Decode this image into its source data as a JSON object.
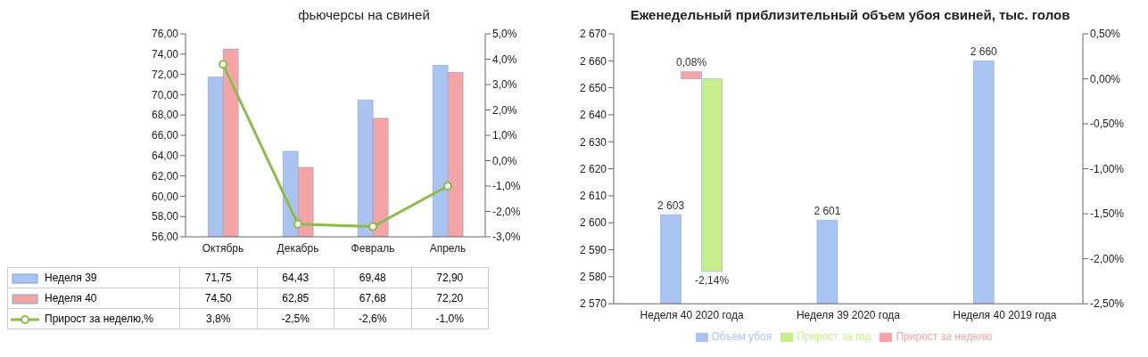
{
  "chart_data": [
    {
      "type": "bar",
      "title": "фьючерсы на свиней",
      "categories": [
        "Октябрь",
        "Декабрь",
        "Февраль",
        "Апрель"
      ],
      "series": [
        {
          "name": "Неделя 39",
          "color": "#a9c4f0",
          "values": [
            71.75,
            64.43,
            69.48,
            72.9
          ],
          "value_labels": [
            "71,75",
            "64,43",
            "69,48",
            "72,90"
          ]
        },
        {
          "name": "Неделя 40",
          "color": "#f4a4a4",
          "values": [
            74.5,
            62.85,
            67.68,
            72.2
          ],
          "value_labels": [
            "74,50",
            "62,85",
            "67,68",
            "72,20"
          ]
        },
        {
          "name": "Прирост за неделю,%",
          "type": "line",
          "axis": "y2",
          "color": "#8dbb4c",
          "values": [
            3.8,
            -2.5,
            -2.6,
            -1.0
          ],
          "value_labels": [
            "3,8%",
            "-2,5%",
            "-2,6%",
            "-1,0%"
          ]
        }
      ],
      "ylim": [
        56,
        76
      ],
      "yticks": [
        {
          "value": 56,
          "label": "56,00"
        },
        {
          "value": 58,
          "label": "58,00"
        },
        {
          "value": 60,
          "label": "60,00"
        },
        {
          "value": 62,
          "label": "62,00"
        },
        {
          "value": 64,
          "label": "64,00"
        },
        {
          "value": 66,
          "label": "66,00"
        },
        {
          "value": 68,
          "label": "68,00"
        },
        {
          "value": 70,
          "label": "70,00"
        },
        {
          "value": 72,
          "label": "72,00"
        },
        {
          "value": 74,
          "label": "74,00"
        },
        {
          "value": 76,
          "label": "76,00"
        }
      ],
      "y2lim": [
        -3,
        5
      ],
      "y2ticks": [
        {
          "value": -3,
          "label": "-3,0%"
        },
        {
          "value": -2,
          "label": "-2,0%"
        },
        {
          "value": -1,
          "label": "-1,0%"
        },
        {
          "value": 0,
          "label": "0,0%"
        },
        {
          "value": 1,
          "label": "1,0%"
        },
        {
          "value": 2,
          "label": "2,0%"
        },
        {
          "value": 3,
          "label": "3,0%"
        },
        {
          "value": 4,
          "label": "4,0%"
        },
        {
          "value": 5,
          "label": "5,0%"
        }
      ],
      "grid": false,
      "legend": "bottom",
      "marker": "circle"
    },
    {
      "type": "bar",
      "title": "Еженедельный приблизительный объем убоя свиней, тыс. голов",
      "categories": [
        "Неделя 40 2020 года",
        "Неделя 39 2020 года",
        "Неделя 40 2019 года"
      ],
      "series": [
        {
          "name": "Объем убоя",
          "color": "#a9c4f0",
          "values": [
            2603,
            2601,
            2660
          ],
          "value_labels": [
            "2 603",
            "2 601",
            "2 660"
          ]
        },
        {
          "name": "Прирост за неделю",
          "axis": "y2",
          "color": "#f4a4a4",
          "values": [
            0.08,
            null,
            null
          ],
          "value_labels": [
            "0,08%",
            null,
            null
          ]
        },
        {
          "name": "Прирост за год",
          "axis": "y2",
          "color": "#c8ee8c",
          "values": [
            -2.14,
            null,
            null
          ],
          "value_labels": [
            "-2,14%",
            null,
            null
          ]
        }
      ],
      "ylim": [
        2570,
        2670
      ],
      "yticks": [
        {
          "value": 2570,
          "label": "2 570"
        },
        {
          "value": 2580,
          "label": "2 580"
        },
        {
          "value": 2590,
          "label": "2 590"
        },
        {
          "value": 2600,
          "label": "2 600"
        },
        {
          "value": 2610,
          "label": "2 610"
        },
        {
          "value": 2620,
          "label": "2 620"
        },
        {
          "value": 2630,
          "label": "2 630"
        },
        {
          "value": 2640,
          "label": "2 640"
        },
        {
          "value": 2650,
          "label": "2 650"
        },
        {
          "value": 2660,
          "label": "2 660"
        },
        {
          "value": 2670,
          "label": "2 670"
        }
      ],
      "y2lim": [
        -2.5,
        0.5
      ],
      "y2ticks": [
        {
          "value": -2.5,
          "label": "-2,50%"
        },
        {
          "value": -2,
          "label": "-2,00%"
        },
        {
          "value": -1.5,
          "label": "-1,50%"
        },
        {
          "value": -1,
          "label": "-1,00%"
        },
        {
          "value": -0.5,
          "label": "-0,50%"
        },
        {
          "value": 0,
          "label": "0,00%"
        },
        {
          "value": 0.5,
          "label": "0,50%"
        }
      ],
      "grid": false,
      "legend": "bottom"
    }
  ]
}
